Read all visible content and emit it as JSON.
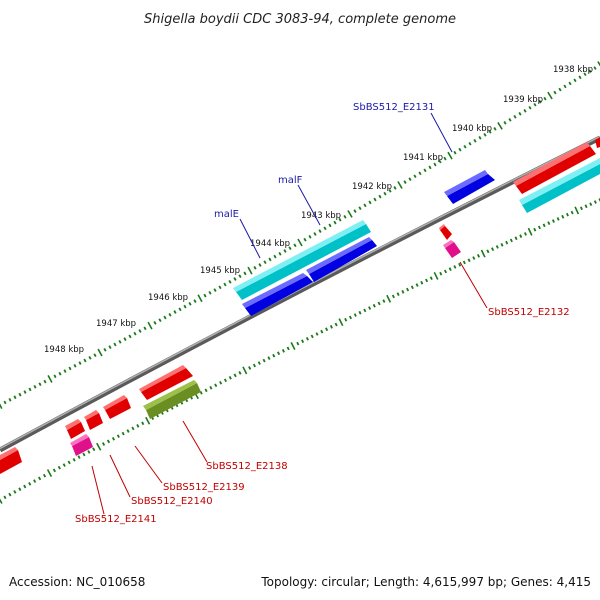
{
  "title": "Shigella boydii CDC 3083-94, complete genome",
  "footer": {
    "accession": "Accession: NC_010658",
    "summary": "Topology: circular; Length: 4,615,997 bp; Genes: 4,415"
  },
  "ticks": [
    {
      "label": "1938 kbp"
    },
    {
      "label": "1939 kbp"
    },
    {
      "label": "1940 kbp"
    },
    {
      "label": "1941 kbp"
    },
    {
      "label": "1942 kbp"
    },
    {
      "label": "1943 kbp"
    },
    {
      "label": "1944 kbp"
    },
    {
      "label": "1945 kbp"
    },
    {
      "label": "1946 kbp"
    },
    {
      "label": "1947 kbp"
    },
    {
      "label": "1948 kbp"
    }
  ],
  "gene_labels": {
    "malE": "malE",
    "malF": "malF",
    "e2131": "SbBS512_E2131",
    "e2132": "SbBS512_E2132",
    "e2138": "SbBS512_E2138",
    "e2139": "SbBS512_E2139",
    "e2140": "SbBS512_E2140",
    "e2141": "SbBS512_E2141"
  },
  "colors": {
    "backbone": "#808080",
    "ticks": "#1a7a1a",
    "forward_gene": "#0000e0",
    "forward_cds": "#00c0c8",
    "reverse_gene": "#e00000",
    "reverse_cds_olive": "#6b8e23",
    "misc": "#e0108a",
    "label_fwd": "#1a1aa8",
    "label_rev": "#c00000"
  }
}
